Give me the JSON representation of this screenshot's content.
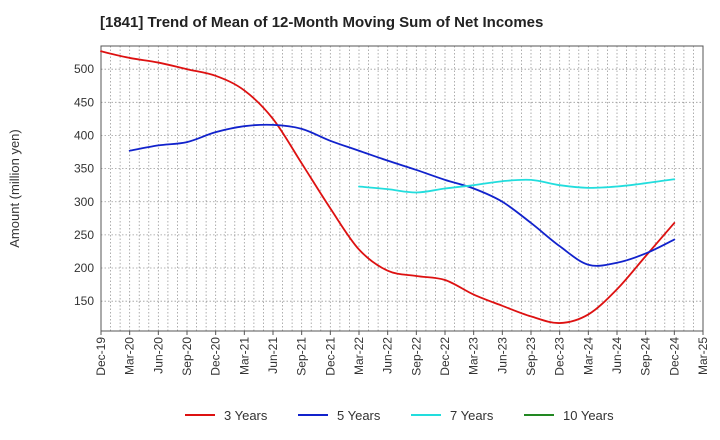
{
  "chart_data": {
    "type": "line",
    "title": "[1841]  Trend of Mean of 12-Month Moving Sum of Net Incomes",
    "xlabel": "",
    "ylabel": "Amount (million yen)",
    "ylim": [
      105,
      535
    ],
    "y_ticks": [
      150,
      200,
      250,
      300,
      350,
      400,
      450,
      500
    ],
    "x_ticks": [
      "Dec-19",
      "Mar-20",
      "Jun-20",
      "Sep-20",
      "Dec-20",
      "Mar-21",
      "Jun-21",
      "Sep-21",
      "Dec-21",
      "Mar-22",
      "Jun-22",
      "Sep-22",
      "Dec-22",
      "Mar-23",
      "Jun-23",
      "Sep-23",
      "Dec-23",
      "Mar-24",
      "Jun-24",
      "Sep-24",
      "Dec-24",
      "Mar-25"
    ],
    "grid": true,
    "legend_position": "bottom",
    "series": [
      {
        "name": "3 Years",
        "color": "#dd1111",
        "points": [
          [
            "Dec-19",
            527
          ],
          [
            "Mar-20",
            517
          ],
          [
            "Jun-20",
            510
          ],
          [
            "Sep-20",
            500
          ],
          [
            "Dec-20",
            490
          ],
          [
            "Mar-21",
            468
          ],
          [
            "Jun-21",
            425
          ],
          [
            "Sep-21",
            358
          ],
          [
            "Dec-21",
            290
          ],
          [
            "Mar-22",
            228
          ],
          [
            "Jun-22",
            196
          ],
          [
            "Sep-22",
            188
          ],
          [
            "Dec-22",
            182
          ],
          [
            "Mar-23",
            160
          ],
          [
            "Jun-23",
            143
          ],
          [
            "Sep-23",
            127
          ],
          [
            "Dec-23",
            117
          ],
          [
            "Mar-24",
            130
          ],
          [
            "Jun-24",
            168
          ],
          [
            "Sep-24",
            218
          ],
          [
            "Dec-24",
            268
          ]
        ]
      },
      {
        "name": "5 Years",
        "color": "#1122cc",
        "points": [
          [
            "Mar-20",
            377
          ],
          [
            "Jun-20",
            385
          ],
          [
            "Sep-20",
            390
          ],
          [
            "Dec-20",
            405
          ],
          [
            "Mar-21",
            414
          ],
          [
            "Jun-21",
            416
          ],
          [
            "Sep-21",
            410
          ],
          [
            "Dec-21",
            392
          ],
          [
            "Mar-22",
            377
          ],
          [
            "Jun-22",
            362
          ],
          [
            "Sep-22",
            348
          ],
          [
            "Dec-22",
            333
          ],
          [
            "Mar-23",
            320
          ],
          [
            "Jun-23",
            300
          ],
          [
            "Sep-23",
            268
          ],
          [
            "Dec-23",
            233
          ],
          [
            "Mar-24",
            205
          ],
          [
            "Jun-24",
            208
          ],
          [
            "Sep-24",
            222
          ],
          [
            "Dec-24",
            243
          ]
        ]
      },
      {
        "name": "7 Years",
        "color": "#22dddd",
        "points": [
          [
            "Mar-22",
            323
          ],
          [
            "Jun-22",
            319
          ],
          [
            "Sep-22",
            314
          ],
          [
            "Dec-22",
            320
          ],
          [
            "Mar-23",
            325
          ],
          [
            "Jun-23",
            331
          ],
          [
            "Sep-23",
            333
          ],
          [
            "Dec-23",
            325
          ],
          [
            "Mar-24",
            321
          ],
          [
            "Jun-24",
            323
          ],
          [
            "Sep-24",
            328
          ],
          [
            "Dec-24",
            334
          ]
        ]
      },
      {
        "name": "10 Years",
        "color": "#228822",
        "points": []
      }
    ]
  }
}
